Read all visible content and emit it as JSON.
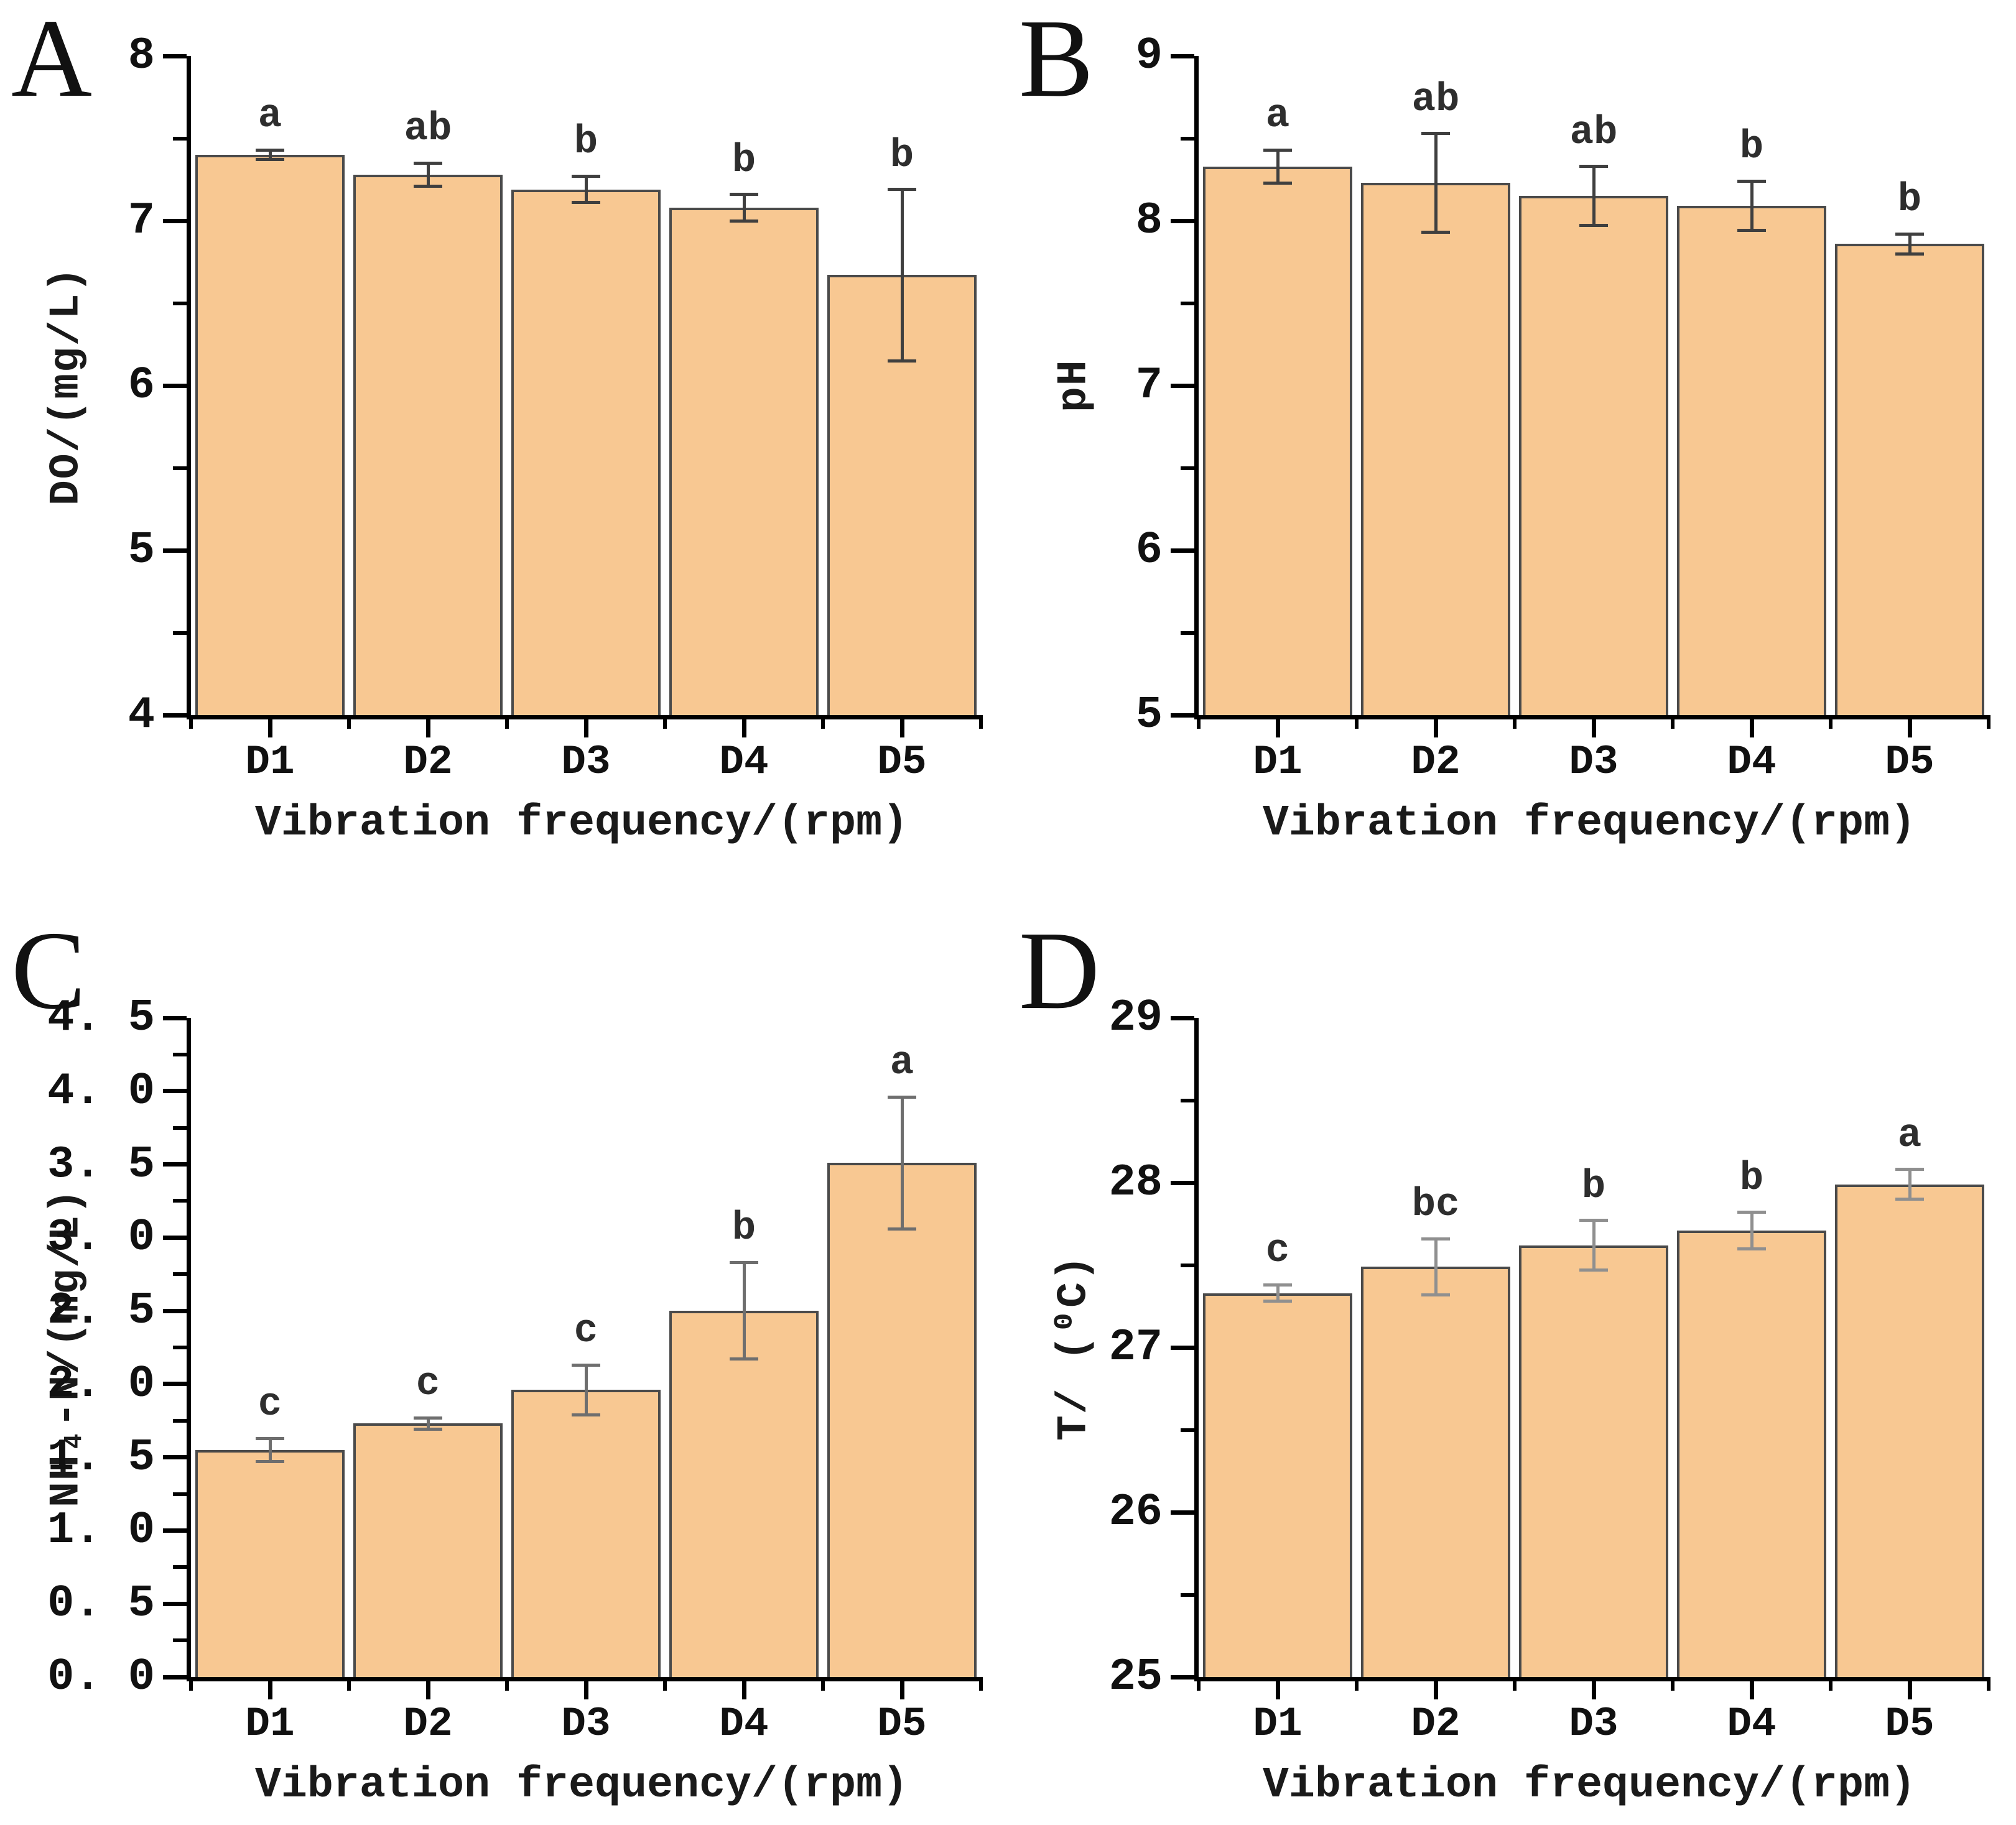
{
  "figure": {
    "background": "#ffffff",
    "bar_fill": "#F8C892",
    "bar_edge": "#4a4a4a",
    "axis_color": "#000000"
  },
  "chart_data": [
    {
      "type": "bar",
      "panel_label": "A",
      "ylabel": "DO/(mg/L)",
      "xlabel": "Vibration frequency/(rpm)",
      "categories": [
        "D1",
        "D2",
        "D3",
        "D4",
        "D5"
      ],
      "values": [
        7.4,
        7.28,
        7.19,
        7.08,
        6.67
      ],
      "errors": [
        0.03,
        0.07,
        0.08,
        0.08,
        0.52
      ],
      "sig_letters": [
        "a",
        "ab",
        "b",
        "b",
        "b"
      ],
      "ylim": [
        4,
        8
      ],
      "ytick_values": [
        4,
        5,
        6,
        7,
        8
      ],
      "ytick_labels": [
        "4",
        "5",
        "6",
        "7",
        "8"
      ],
      "minor_step": 0.5,
      "error_color": "#3f3f3f",
      "legend": "none",
      "grid": "off"
    },
    {
      "type": "bar",
      "panel_label": "B",
      "ylabel": "pH",
      "xlabel": "Vibration frequency/(rpm)",
      "categories": [
        "D1",
        "D2",
        "D3",
        "D4",
        "D5"
      ],
      "values": [
        8.33,
        8.23,
        8.15,
        8.09,
        7.86
      ],
      "errors": [
        0.1,
        0.3,
        0.18,
        0.15,
        0.06
      ],
      "sig_letters": [
        "a",
        "ab",
        "ab",
        "b",
        "b"
      ],
      "ylim": [
        5,
        9
      ],
      "ytick_values": [
        5,
        6,
        7,
        8,
        9
      ],
      "ytick_labels": [
        "5",
        "6",
        "7",
        "8",
        "9"
      ],
      "minor_step": 0.5,
      "error_color": "#3f3f3f",
      "legend": "none",
      "grid": "off"
    },
    {
      "type": "bar",
      "panel_label": "C",
      "ylabel": "NH₄-N/(mg/L)",
      "xlabel": "Vibration frequency/(rpm)",
      "categories": [
        "D1",
        "D2",
        "D3",
        "D4",
        "D5"
      ],
      "values": [
        1.55,
        1.73,
        1.96,
        2.5,
        3.51
      ],
      "errors": [
        0.08,
        0.04,
        0.17,
        0.33,
        0.45
      ],
      "sig_letters": [
        "c",
        "c",
        "c",
        "b",
        "a"
      ],
      "ylim": [
        0,
        4.5
      ],
      "ytick_values": [
        0,
        0.5,
        1.0,
        1.5,
        2.0,
        2.5,
        3.0,
        3.5,
        4.0,
        4.5
      ],
      "ytick_labels": [
        "0. 0",
        "0. 5",
        "1. 0",
        "1. 5",
        "2. 0",
        "2. 5",
        "3. 0",
        "3. 5",
        "4. 0",
        "4. 5"
      ],
      "minor_step": 0.25,
      "error_color": "#6e6e6e",
      "legend": "none",
      "grid": "off"
    },
    {
      "type": "bar",
      "panel_label": "D",
      "ylabel": "T/ (⁰C)",
      "xlabel": "Vibration frequency/(rpm)",
      "categories": [
        "D1",
        "D2",
        "D3",
        "D4",
        "D5"
      ],
      "values": [
        27.33,
        27.49,
        27.62,
        27.71,
        27.99
      ],
      "errors": [
        0.05,
        0.17,
        0.15,
        0.11,
        0.09
      ],
      "sig_letters": [
        "c",
        "bc",
        "b",
        "b",
        "a"
      ],
      "ylim": [
        25,
        29
      ],
      "ytick_values": [
        25,
        26,
        27,
        28,
        29
      ],
      "ytick_labels": [
        "25",
        "26",
        "27",
        "28",
        "29"
      ],
      "minor_step": 0.5,
      "error_color": "#8f8f8f",
      "legend": "none",
      "grid": "off"
    }
  ]
}
